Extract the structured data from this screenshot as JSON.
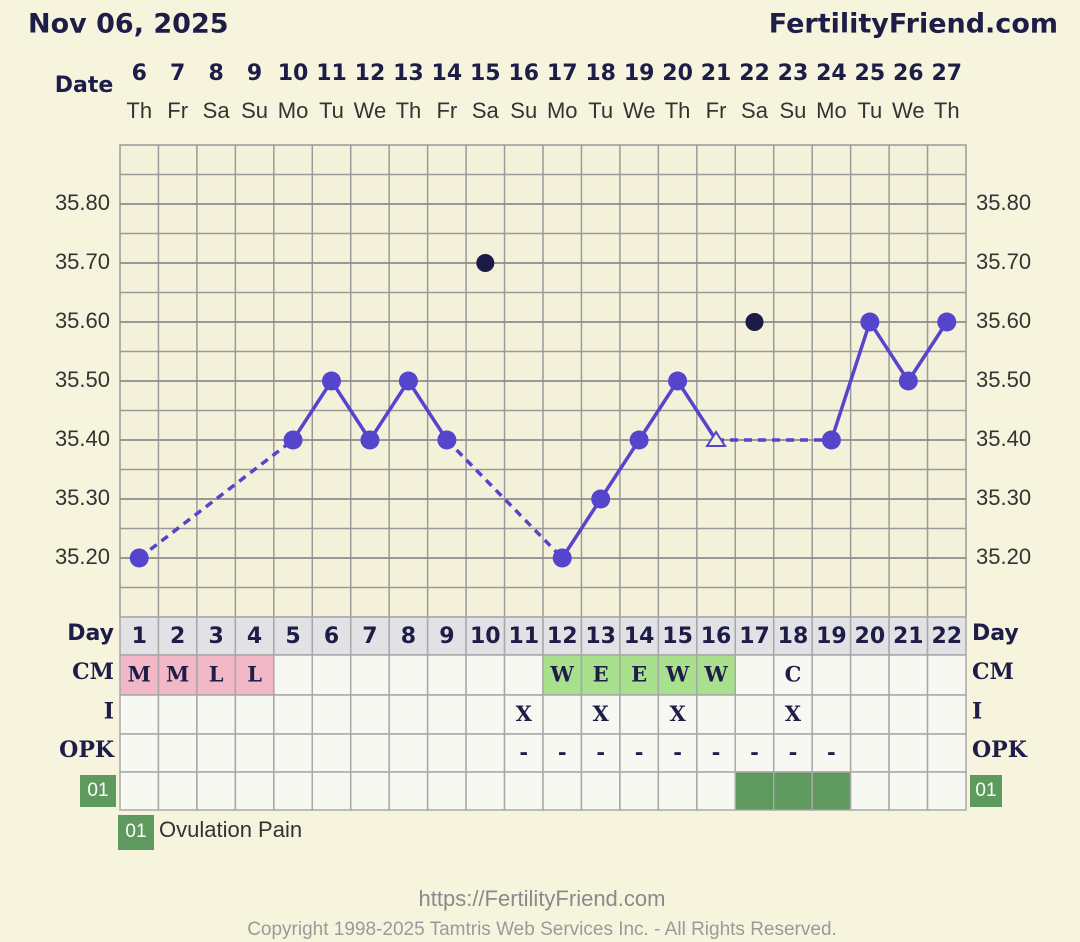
{
  "header": {
    "date": "Nov 06, 2025",
    "site": "FertilityFriend.com"
  },
  "chart_data": {
    "type": "line",
    "x_label": "Date",
    "categories": [
      6,
      7,
      8,
      9,
      10,
      11,
      12,
      13,
      14,
      15,
      16,
      17,
      18,
      19,
      20,
      21,
      22,
      23,
      24,
      25,
      26,
      27
    ],
    "weekdays": [
      "Th",
      "Fr",
      "Sa",
      "Su",
      "Mo",
      "Tu",
      "We",
      "Th",
      "Fr",
      "Sa",
      "Su",
      "Mo",
      "Tu",
      "We",
      "Th",
      "Fr",
      "Sa",
      "Su",
      "Mo",
      "Tu",
      "We",
      "Th"
    ],
    "series": [
      {
        "color": "#5544cc",
        "connect": true,
        "values": [
          35.2,
          null,
          null,
          null,
          35.4,
          35.5,
          35.4,
          35.5,
          35.4,
          null,
          null,
          35.2,
          35.3,
          35.4,
          35.5,
          35.4,
          null,
          null,
          35.4,
          35.6,
          35.5,
          35.6
        ],
        "markers": [
          "circle",
          null,
          null,
          null,
          "circle",
          "circle",
          "circle",
          "circle",
          "circle",
          null,
          null,
          "circle",
          "circle",
          "circle",
          "circle",
          "triangle",
          null,
          null,
          "circle",
          "circle",
          "circle",
          "circle"
        ]
      },
      {
        "color": "#1c1b45",
        "connect": false,
        "values": [
          null,
          null,
          null,
          null,
          null,
          null,
          null,
          null,
          null,
          35.7,
          null,
          null,
          null,
          null,
          null,
          null,
          35.6,
          null,
          null,
          null,
          null,
          null
        ]
      }
    ],
    "ylim": [
      35.1,
      35.9
    ],
    "yticks": [
      {
        "value": 35.2,
        "label": "35.20"
      },
      {
        "value": 35.3,
        "label": "35.30"
      },
      {
        "value": 35.4,
        "label": "35.40"
      },
      {
        "value": 35.5,
        "label": "35.50"
      },
      {
        "value": 35.6,
        "label": "35.60"
      },
      {
        "value": 35.7,
        "label": "35.70"
      },
      {
        "value": 35.8,
        "label": "35.80"
      }
    ],
    "grid": true
  },
  "table": {
    "day_label": "Day",
    "days": [
      1,
      2,
      3,
      4,
      5,
      6,
      7,
      8,
      9,
      10,
      11,
      12,
      13,
      14,
      15,
      16,
      17,
      18,
      19,
      20,
      21,
      22
    ],
    "cm": {
      "label": "CM",
      "values": [
        "M",
        "M",
        "L",
        "L",
        null,
        null,
        null,
        null,
        null,
        null,
        null,
        "W",
        "E",
        "E",
        "W",
        "W",
        null,
        "C",
        null,
        null,
        null,
        null
      ],
      "colors": [
        "#f2b8c8",
        "#f2b8c8",
        "#f2b8c8",
        "#f2b8c8",
        null,
        null,
        null,
        null,
        null,
        null,
        null,
        "#a8e08e",
        "#a8e08e",
        "#a8e08e",
        "#a8e08e",
        "#a8e08e",
        null,
        null,
        null,
        null,
        null,
        null
      ]
    },
    "i": {
      "label": "I",
      "values": [
        null,
        null,
        null,
        null,
        null,
        null,
        null,
        null,
        null,
        null,
        "X",
        null,
        "X",
        null,
        "X",
        null,
        null,
        "X",
        null,
        null,
        null,
        null
      ]
    },
    "opk": {
      "label": "OPK",
      "values": [
        null,
        null,
        null,
        null,
        null,
        null,
        null,
        null,
        null,
        null,
        "-",
        "-",
        "-",
        "-",
        "-",
        "-",
        "-",
        "-",
        "-",
        null,
        null,
        null
      ]
    },
    "custom": {
      "label": "01",
      "color": "#5e9a5e",
      "values": [
        false,
        false,
        false,
        false,
        false,
        false,
        false,
        false,
        false,
        false,
        false,
        false,
        false,
        false,
        false,
        false,
        true,
        true,
        true,
        false,
        false,
        false
      ]
    }
  },
  "legend": {
    "code": "01",
    "text": "Ovulation Pain"
  },
  "footer": {
    "url": "https://FertilityFriend.com",
    "copyright": "Copyright 1998-2025 Tamtris Web Services Inc. - All Rights Reserved."
  }
}
